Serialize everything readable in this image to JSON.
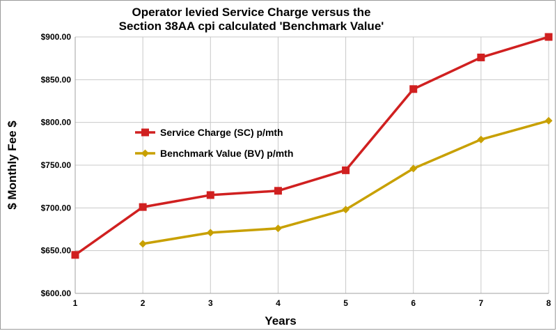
{
  "chart_data": {
    "type": "line",
    "title": [
      "Operator levied Service Charge versus the",
      "Section 38AA cpi calculated 'Benchmark Value'"
    ],
    "xlabel": "Years",
    "ylabel": "$ Monthly Fee $",
    "x": [
      1,
      2,
      3,
      4,
      5,
      6,
      7,
      8
    ],
    "x_ticks": [
      "1",
      "2",
      "3",
      "4",
      "5",
      "6",
      "7",
      "8"
    ],
    "ylim": [
      600,
      900
    ],
    "y_ticks": [
      600,
      650,
      700,
      750,
      800,
      850,
      900
    ],
    "y_tick_labels": [
      "$600.00",
      "$650.00",
      "$700.00",
      "$750.00",
      "$800.00",
      "$850.00",
      "$900.00"
    ],
    "grid": true,
    "legend_position": "left-center",
    "series": [
      {
        "name": "Service Charge (SC) p/mth",
        "color": "#d02020",
        "marker": "square",
        "x": [
          1,
          2,
          3,
          4,
          5,
          6,
          7,
          8
        ],
        "values": [
          645,
          701,
          715,
          720,
          744,
          839,
          876,
          900
        ]
      },
      {
        "name": "Benchmark Value (BV) p/mth",
        "color": "#c8a000",
        "marker": "diamond",
        "x": [
          2,
          3,
          4,
          5,
          6,
          7,
          8
        ],
        "values": [
          658,
          671,
          676,
          698,
          746,
          780,
          802
        ]
      }
    ]
  }
}
